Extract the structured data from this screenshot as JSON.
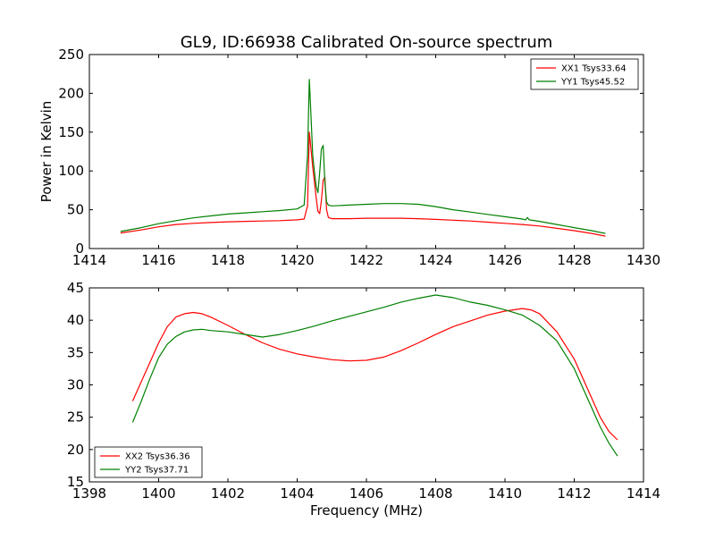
{
  "figure": {
    "title": "GL9, ID:66938 Calibrated On-source spectrum"
  },
  "chart_data": [
    {
      "type": "line",
      "title": "GL9, ID:66938 Calibrated On-source spectrum",
      "xlabel": "",
      "ylabel": "Power in Kelvin",
      "xlim": [
        1414,
        1430
      ],
      "ylim": [
        0,
        250
      ],
      "xticks": [
        "1414",
        "1416",
        "1418",
        "1420",
        "1422",
        "1424",
        "1426",
        "1428",
        "1430"
      ],
      "yticks": [
        "0",
        "50",
        "100",
        "150",
        "200",
        "250"
      ],
      "xtick_values": [
        1414,
        1416,
        1418,
        1420,
        1422,
        1424,
        1426,
        1428,
        1430
      ],
      "ytick_values": [
        0,
        50,
        100,
        150,
        200,
        250
      ],
      "grid": false,
      "legend_position": "top-right",
      "series": [
        {
          "name": "XX1 Tsys33.64",
          "color": "#ff0000",
          "x": [
            1414.9,
            1415.5,
            1416,
            1416.5,
            1417,
            1417.5,
            1418,
            1418.5,
            1419,
            1419.5,
            1420,
            1420.2,
            1420.3,
            1420.35,
            1420.4,
            1420.45,
            1420.5,
            1420.55,
            1420.6,
            1420.65,
            1420.7,
            1420.75,
            1420.8,
            1420.85,
            1420.9,
            1421,
            1421.5,
            1422,
            1422.5,
            1423,
            1423.5,
            1424,
            1424.5,
            1425,
            1425.5,
            1426,
            1426.5,
            1427,
            1427.5,
            1428,
            1428.5,
            1428.9
          ],
          "y": [
            20,
            24,
            28,
            31,
            32.5,
            33.5,
            34.5,
            35,
            35.5,
            36,
            37,
            38,
            55,
            150,
            128,
            105,
            85,
            65,
            48,
            45,
            62,
            88,
            92,
            50,
            40,
            38.5,
            38.5,
            39,
            39,
            39,
            38.5,
            37.5,
            36.5,
            35.5,
            34,
            32.5,
            31,
            29,
            26,
            23,
            19.5,
            16
          ]
        },
        {
          "name": "YY1 Tsys45.52",
          "color": "#008000",
          "x": [
            1414.9,
            1415.5,
            1416,
            1416.5,
            1417,
            1417.5,
            1418,
            1418.5,
            1419,
            1419.5,
            1420,
            1420.2,
            1420.3,
            1420.35,
            1420.4,
            1420.45,
            1420.5,
            1420.55,
            1420.6,
            1420.65,
            1420.7,
            1420.75,
            1420.8,
            1420.85,
            1420.9,
            1421,
            1421.5,
            1422,
            1422.5,
            1423,
            1423.5,
            1424,
            1424.5,
            1425,
            1425.5,
            1426,
            1426.5,
            1426.6,
            1426.65,
            1426.7,
            1427,
            1427.5,
            1428,
            1428.5,
            1428.9
          ],
          "y": [
            22,
            27,
            32,
            36,
            39.5,
            42,
            44.5,
            46,
            47.5,
            49,
            51,
            56,
            120,
            218,
            170,
            120,
            98,
            80,
            72,
            98,
            128,
            133,
            85,
            60,
            56,
            55,
            56,
            57,
            58,
            58,
            57,
            54,
            50,
            47,
            44,
            41,
            38,
            37,
            40,
            37,
            35,
            31,
            27,
            23,
            19.5
          ]
        }
      ]
    },
    {
      "type": "line",
      "title": "",
      "xlabel": "Frequency (MHz)",
      "ylabel": "",
      "xlim": [
        1398,
        1414
      ],
      "ylim": [
        15,
        45
      ],
      "xticks": [
        "1398",
        "1400",
        "1402",
        "1404",
        "1406",
        "1408",
        "1410",
        "1412",
        "1414"
      ],
      "yticks": [
        "15",
        "20",
        "25",
        "30",
        "35",
        "40",
        "45"
      ],
      "xtick_values": [
        1398,
        1400,
        1402,
        1404,
        1406,
        1408,
        1410,
        1412,
        1414
      ],
      "ytick_values": [
        15,
        20,
        25,
        30,
        35,
        40,
        45
      ],
      "grid": false,
      "legend_position": "bottom-left",
      "series": [
        {
          "name": "XX2 Tsys36.36",
          "color": "#ff0000",
          "x": [
            1399.25,
            1399.5,
            1399.75,
            1400,
            1400.25,
            1400.5,
            1400.75,
            1401,
            1401.25,
            1401.5,
            1402,
            1402.5,
            1403,
            1403.5,
            1404,
            1404.5,
            1405,
            1405.5,
            1406,
            1406.5,
            1407,
            1407.5,
            1408,
            1408.5,
            1409,
            1409.5,
            1410,
            1410.5,
            1410.75,
            1411,
            1411.5,
            1412,
            1412.25,
            1412.5,
            1412.75,
            1413,
            1413.25
          ],
          "y": [
            27.5,
            30.5,
            33.5,
            36.5,
            39,
            40.5,
            41,
            41.2,
            41,
            40.5,
            39.2,
            37.8,
            36.5,
            35.5,
            34.8,
            34.3,
            33.9,
            33.7,
            33.8,
            34.3,
            35.3,
            36.5,
            37.8,
            39,
            39.9,
            40.8,
            41.4,
            41.8,
            41.6,
            41,
            38.2,
            34,
            31,
            28,
            25,
            22.8,
            21.5
          ]
        },
        {
          "name": "YY2 Tsys37.71",
          "color": "#008000",
          "x": [
            1399.25,
            1399.5,
            1399.75,
            1400,
            1400.25,
            1400.5,
            1400.75,
            1401,
            1401.25,
            1401.5,
            1402,
            1402.5,
            1403,
            1403.5,
            1404,
            1404.5,
            1405,
            1405.5,
            1406,
            1406.5,
            1407,
            1407.5,
            1408,
            1408.5,
            1409,
            1409.5,
            1410,
            1410.5,
            1411,
            1411.5,
            1412,
            1412.25,
            1412.5,
            1412.75,
            1413,
            1413.25
          ],
          "y": [
            24.2,
            27.5,
            31,
            34.2,
            36.3,
            37.5,
            38.2,
            38.5,
            38.6,
            38.4,
            38.2,
            37.8,
            37.4,
            37.8,
            38.4,
            39.1,
            39.9,
            40.6,
            41.3,
            42,
            42.8,
            43.4,
            43.9,
            43.5,
            42.8,
            42.3,
            41.6,
            40.8,
            39.2,
            36.8,
            32.5,
            29.5,
            26.5,
            23.5,
            21,
            19
          ]
        }
      ]
    }
  ]
}
